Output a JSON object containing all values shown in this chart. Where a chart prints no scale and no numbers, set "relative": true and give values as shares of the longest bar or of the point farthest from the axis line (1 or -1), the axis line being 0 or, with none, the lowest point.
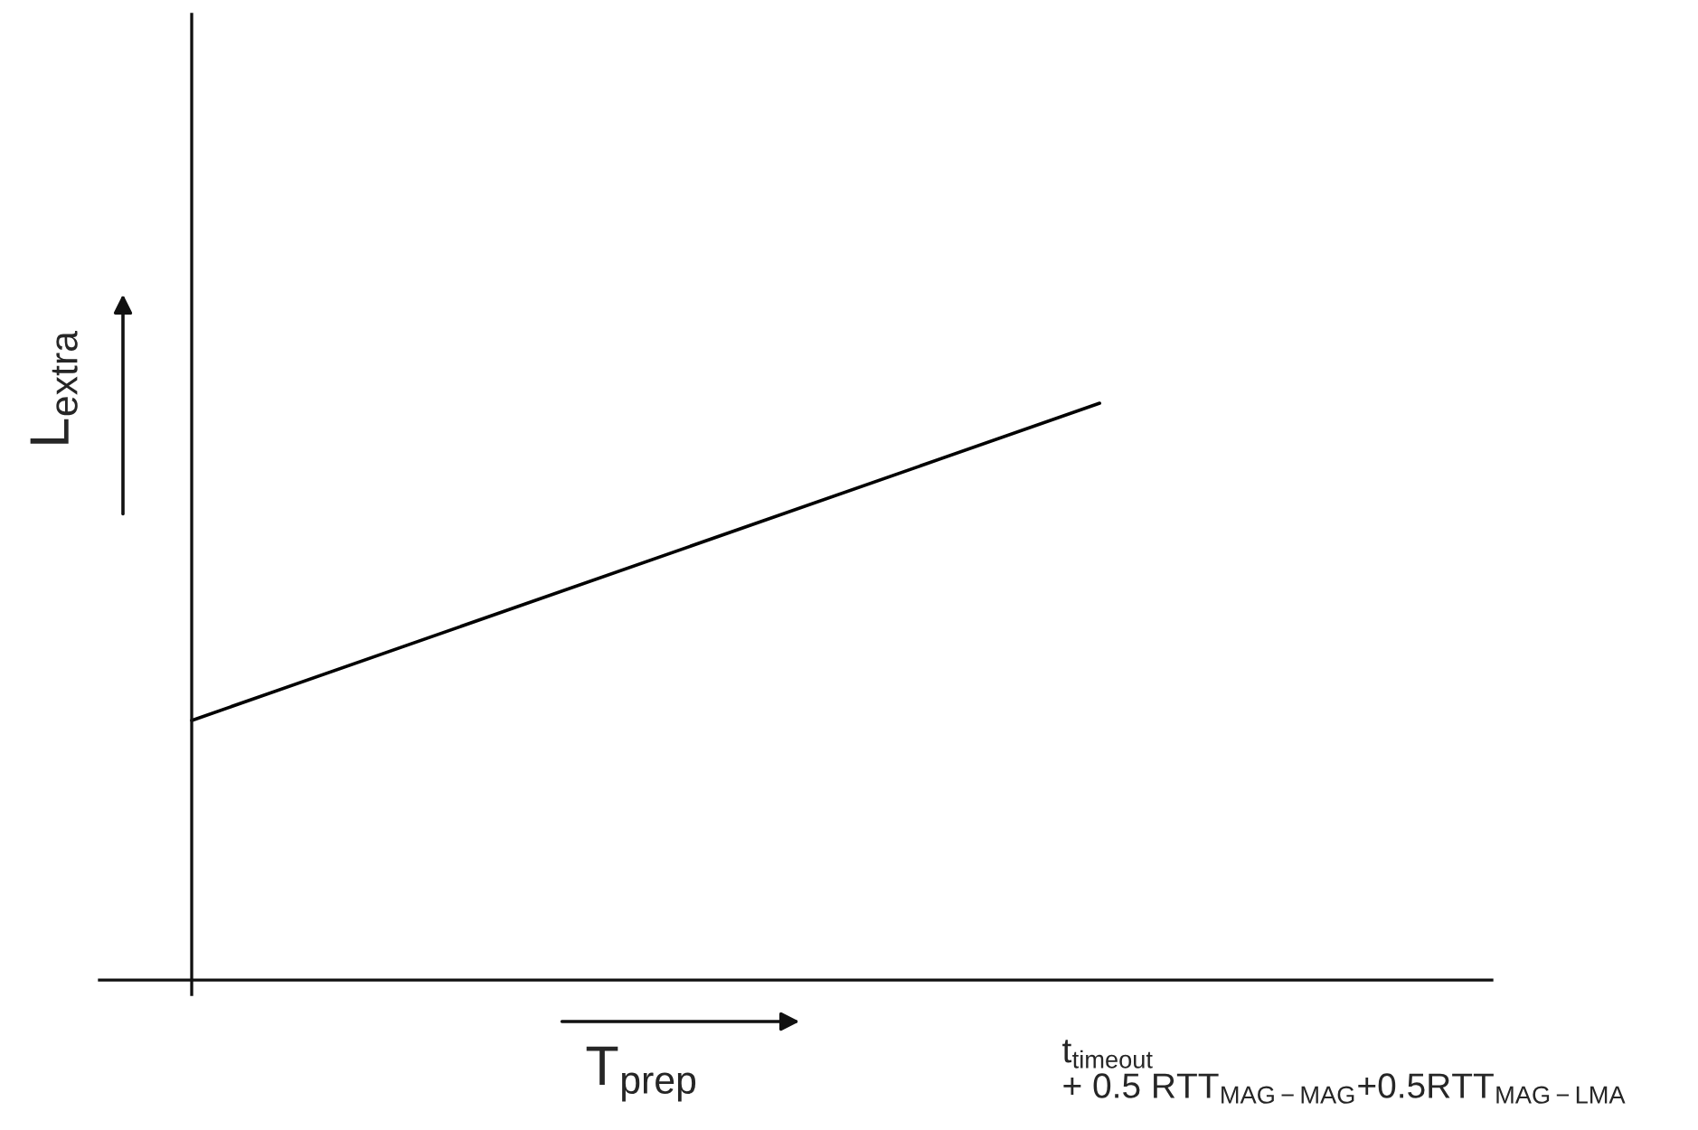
{
  "chart_data": {
    "type": "line",
    "relative": true,
    "categories": [
      null,
      null
    ],
    "series": [
      {
        "color": "#000000",
        "values": [
          0.45,
          1
        ]
      }
    ],
    "annotations": [
      "t$_{timeout}$\n+ 0.5 RTT$_{MAG−MAG}$+0.5RTT$_{MAG−LMA}$"
    ],
    "xlabel": "T$_{prep}$",
    "ylabel": "L$_{extra}$",
    "grid": false,
    "legend": false,
    "marker": "none",
    "line_style": "solid"
  }
}
